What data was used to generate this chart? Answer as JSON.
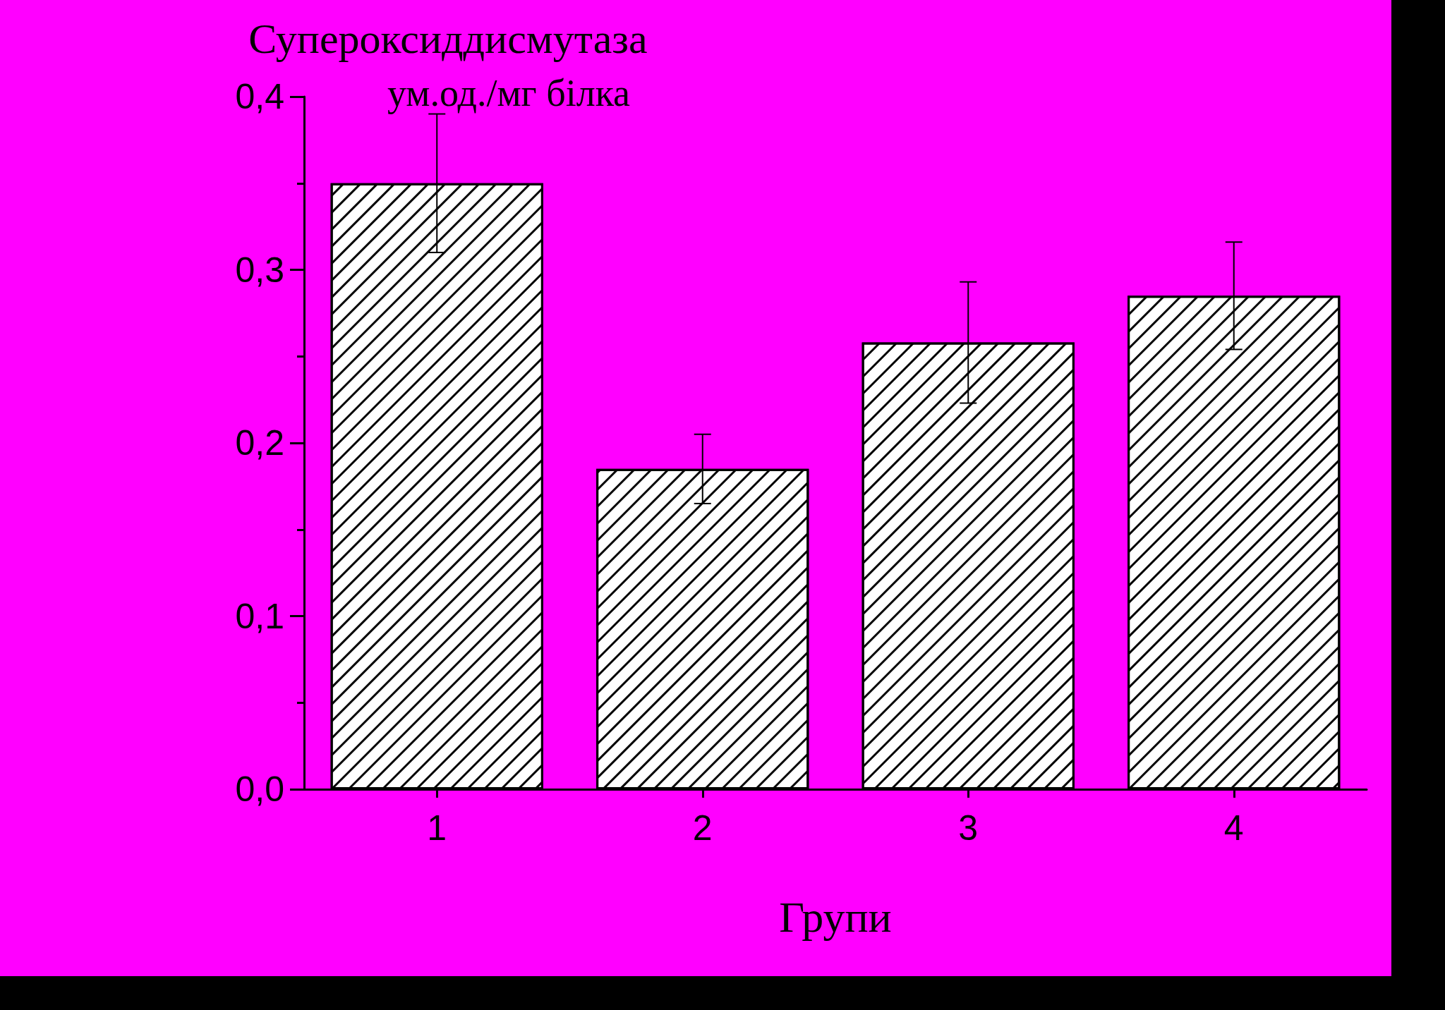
{
  "chart_data": {
    "type": "bar",
    "title": "Супероксиддисмутаза",
    "ylabel": "ум.од./мг білка",
    "xlabel": "Групи",
    "categories": [
      "1",
      "2",
      "3",
      "4"
    ],
    "values": [
      0.35,
      0.185,
      0.258,
      0.285
    ],
    "errors": [
      [
        0.31,
        0.39
      ],
      [
        0.165,
        0.205
      ],
      [
        0.223,
        0.293
      ],
      [
        0.254,
        0.316
      ]
    ],
    "color": "#ffffff",
    "ylim": [
      0,
      0.4
    ],
    "yticks": [
      {
        "value": 0,
        "label": "0,0"
      },
      {
        "value": 0.1,
        "label": "0,1"
      },
      {
        "value": 0.2,
        "label": "0,2"
      },
      {
        "value": 0.3,
        "label": "0,3"
      },
      {
        "value": 0.4,
        "label": "0,4"
      }
    ],
    "grid": false
  }
}
